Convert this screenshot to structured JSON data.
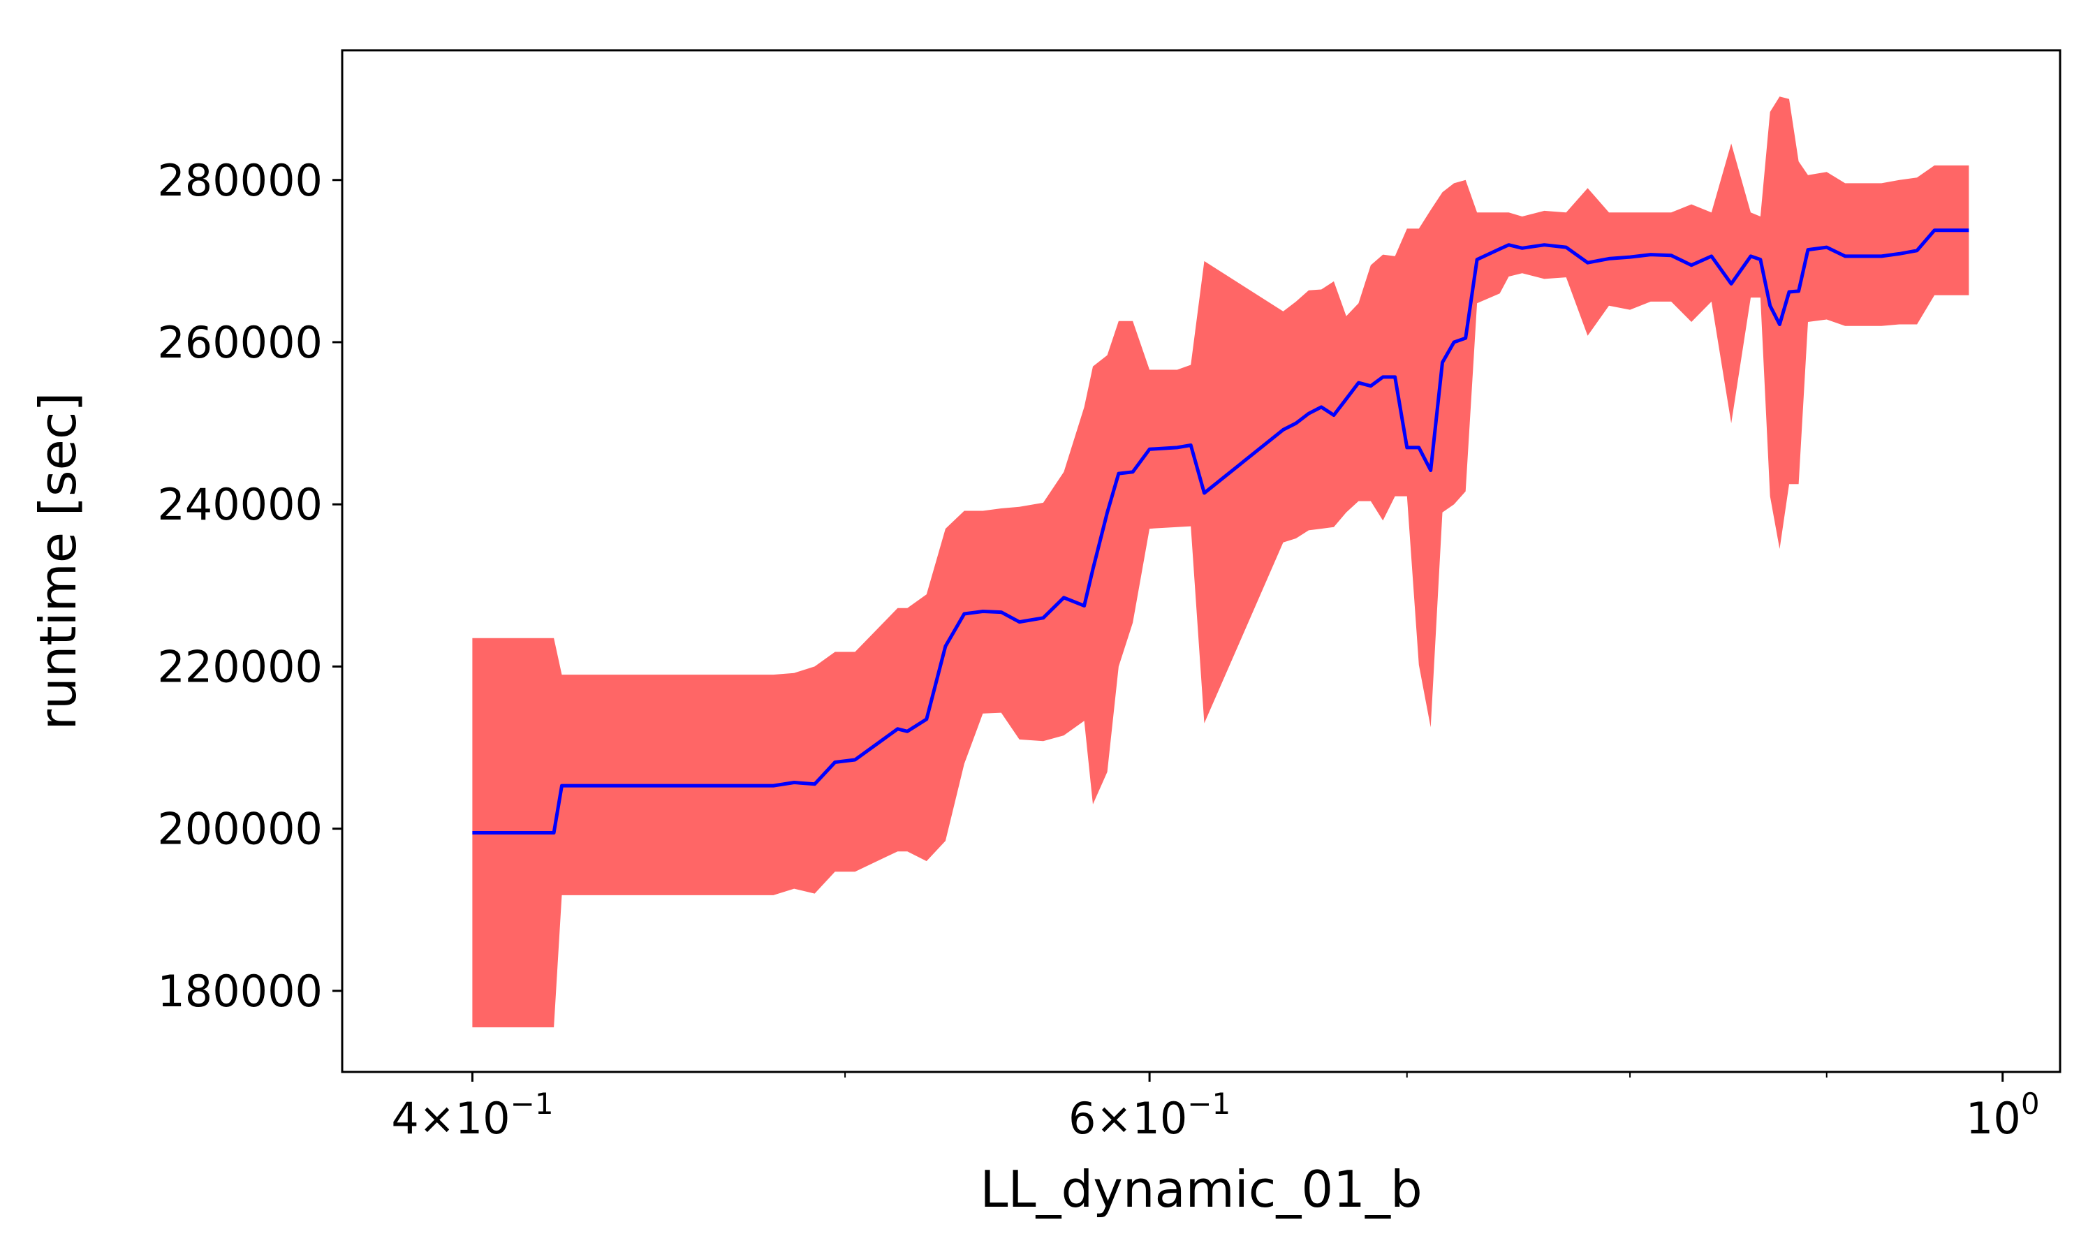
{
  "chart_data": {
    "type": "line",
    "title": "",
    "xlabel": "LL_dynamic_01_b",
    "ylabel": "runtime [sec]",
    "xscale": "log",
    "xlim": [
      0.37,
      1.035
    ],
    "ylim": [
      170000,
      296000
    ],
    "grid": false,
    "legend": "none",
    "colors": {
      "line": "#0000ff",
      "band": "#ff6666"
    },
    "x_ticks": [
      {
        "value": 0.4,
        "base": "4×10",
        "exp": "−1"
      },
      {
        "value": 0.6,
        "base": "6×10",
        "exp": "−1"
      },
      {
        "value": 1.0,
        "base": "10",
        "exp": "0"
      }
    ],
    "x_minor_ticks": [
      0.5,
      0.7,
      0.8,
      0.9
    ],
    "y_ticks": [
      {
        "value": 180000,
        "label": "180000"
      },
      {
        "value": 200000,
        "label": "200000"
      },
      {
        "value": 220000,
        "label": "220000"
      },
      {
        "value": 240000,
        "label": "240000"
      },
      {
        "value": 260000,
        "label": "260000"
      },
      {
        "value": 280000,
        "label": "280000"
      }
    ],
    "series": [
      {
        "x": [
          0.4,
          0.42,
          0.422,
          0.437,
          0.479,
          0.485,
          0.491,
          0.497,
          0.503,
          0.516,
          0.519,
          0.525,
          0.531,
          0.537,
          0.543,
          0.549,
          0.555,
          0.563,
          0.57,
          0.577,
          0.58,
          0.585,
          0.589,
          0.594,
          0.6,
          0.61,
          0.615,
          0.62,
          0.65,
          0.655,
          0.66,
          0.665,
          0.67,
          0.675,
          0.68,
          0.685,
          0.69,
          0.695,
          0.7,
          0.705,
          0.71,
          0.715,
          0.72,
          0.725,
          0.73,
          0.74,
          0.744,
          0.75,
          0.76,
          0.77,
          0.78,
          0.79,
          0.8,
          0.81,
          0.82,
          0.83,
          0.84,
          0.85,
          0.86,
          0.865,
          0.87,
          0.875,
          0.88,
          0.885,
          0.89,
          0.9,
          0.91,
          0.92,
          0.93,
          0.94,
          0.95,
          0.96,
          0.97,
          0.98
        ],
        "mean": [
          199500,
          199500,
          205300,
          205300,
          205300,
          205700,
          205500,
          208200,
          208500,
          212300,
          212000,
          213500,
          222500,
          226500,
          226800,
          226700,
          225500,
          226000,
          228500,
          227500,
          232000,
          239000,
          243800,
          244000,
          246800,
          247000,
          247300,
          241400,
          249200,
          250000,
          251200,
          252000,
          251000,
          253000,
          255000,
          254600,
          255700,
          255700,
          247000,
          247000,
          244200,
          257500,
          260000,
          260500,
          270200,
          271500,
          272000,
          271600,
          272000,
          271700,
          269800,
          270300,
          270500,
          270800,
          270700,
          269500,
          270600,
          267200,
          270600,
          270200,
          264500,
          262200,
          266200,
          266300,
          271400,
          271700,
          270600,
          270600,
          270600,
          270900,
          271300,
          273800,
          273800,
          273800
        ],
        "upper": [
          223500,
          223500,
          219000,
          219000,
          219000,
          219200,
          220000,
          221800,
          221800,
          227200,
          227200,
          228900,
          237000,
          239200,
          239200,
          239500,
          239700,
          240200,
          244000,
          252000,
          257000,
          258400,
          262600,
          262600,
          256600,
          256600,
          257200,
          270000,
          263800,
          265000,
          266400,
          266500,
          267500,
          263200,
          264800,
          269500,
          270800,
          270600,
          274000,
          274000,
          276300,
          278500,
          279600,
          280000,
          276000,
          276000,
          276000,
          275500,
          276200,
          276000,
          279000,
          276000,
          276000,
          276000,
          276000,
          277000,
          276000,
          284500,
          276000,
          275500,
          288400,
          290300,
          290000,
          282300,
          280600,
          281000,
          279600,
          279600,
          279600,
          280000,
          280300,
          281800,
          281800,
          281800
        ],
        "lower": [
          175500,
          175500,
          191800,
          191800,
          191800,
          192600,
          192000,
          194700,
          194700,
          197200,
          197200,
          196000,
          198500,
          208000,
          214200,
          214300,
          211000,
          210800,
          211500,
          213300,
          203000,
          207000,
          220000,
          225400,
          237000,
          237200,
          237300,
          213000,
          235300,
          235800,
          236800,
          237000,
          237200,
          239000,
          240400,
          240400,
          238000,
          241000,
          241000,
          220200,
          212500,
          239000,
          240000,
          241600,
          264800,
          266000,
          268100,
          268500,
          267800,
          268000,
          260800,
          264500,
          264000,
          265000,
          265000,
          262500,
          265000,
          250000,
          265500,
          265500,
          241000,
          234500,
          242500,
          242500,
          262500,
          262800,
          262000,
          262000,
          262000,
          262200,
          262200,
          265800,
          265800,
          265800
        ]
      }
    ]
  }
}
